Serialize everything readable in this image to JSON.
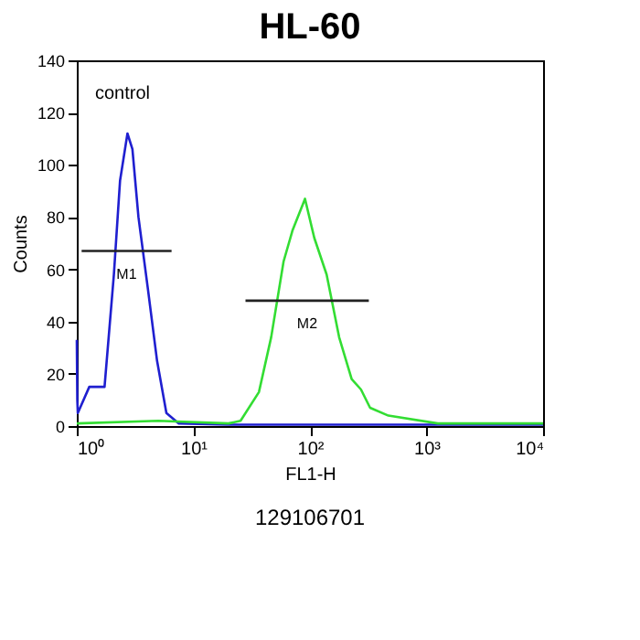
{
  "chart_data": {
    "type": "line",
    "title": "HL-60",
    "xlabel": "FL1-H",
    "ylabel": "Counts",
    "log": "x",
    "grid": false,
    "marker": "none",
    "line_style": "solid",
    "xlim": [
      1,
      10000
    ],
    "ylim": [
      0,
      140
    ],
    "xticks": [
      {
        "value": 1,
        "label": "10⁰"
      },
      {
        "value": 10,
        "label": "10¹"
      },
      {
        "value": 100,
        "label": "10²"
      },
      {
        "value": 1000,
        "label": "10³"
      },
      {
        "value": 10000,
        "label": "10⁴"
      }
    ],
    "yticks": [
      0,
      20,
      40,
      60,
      80,
      100,
      120,
      140
    ],
    "series": [
      {
        "color": "#1f1fd0",
        "x": [
          1.0,
          1.01,
          1.02,
          1.28,
          1.73,
          2.08,
          2.35,
          2.72,
          3.0,
          3.38,
          4.06,
          4.88,
          5.87,
          7.5,
          20,
          100,
          1000,
          10000
        ],
        "values": [
          33,
          10,
          5,
          15,
          15,
          58,
          94,
          112,
          106,
          80,
          53,
          25,
          5,
          1,
          0.5,
          0.5,
          0.5,
          0.5
        ]
      },
      {
        "color": "#33dd33",
        "x": [
          1,
          5,
          20,
          25.4,
          36.5,
          46.5,
          59.4,
          71,
          90.7,
          109,
          139,
          178,
          228,
          274,
          328,
          471,
          1250,
          10000
        ],
        "values": [
          1,
          2,
          1,
          2,
          13,
          34,
          63,
          75,
          87,
          72,
          58,
          34,
          18,
          14,
          7,
          4,
          1,
          1
        ]
      },
      {
        "name": "M1",
        "color": "#222222",
        "x": [
          1.1,
          6.5
        ],
        "values": [
          67,
          67
        ]
      },
      {
        "name": "M2",
        "color": "#222222",
        "x": [
          28,
          320
        ],
        "values": [
          48,
          48
        ]
      }
    ],
    "annotations": [
      "control",
      "129106701"
    ]
  }
}
